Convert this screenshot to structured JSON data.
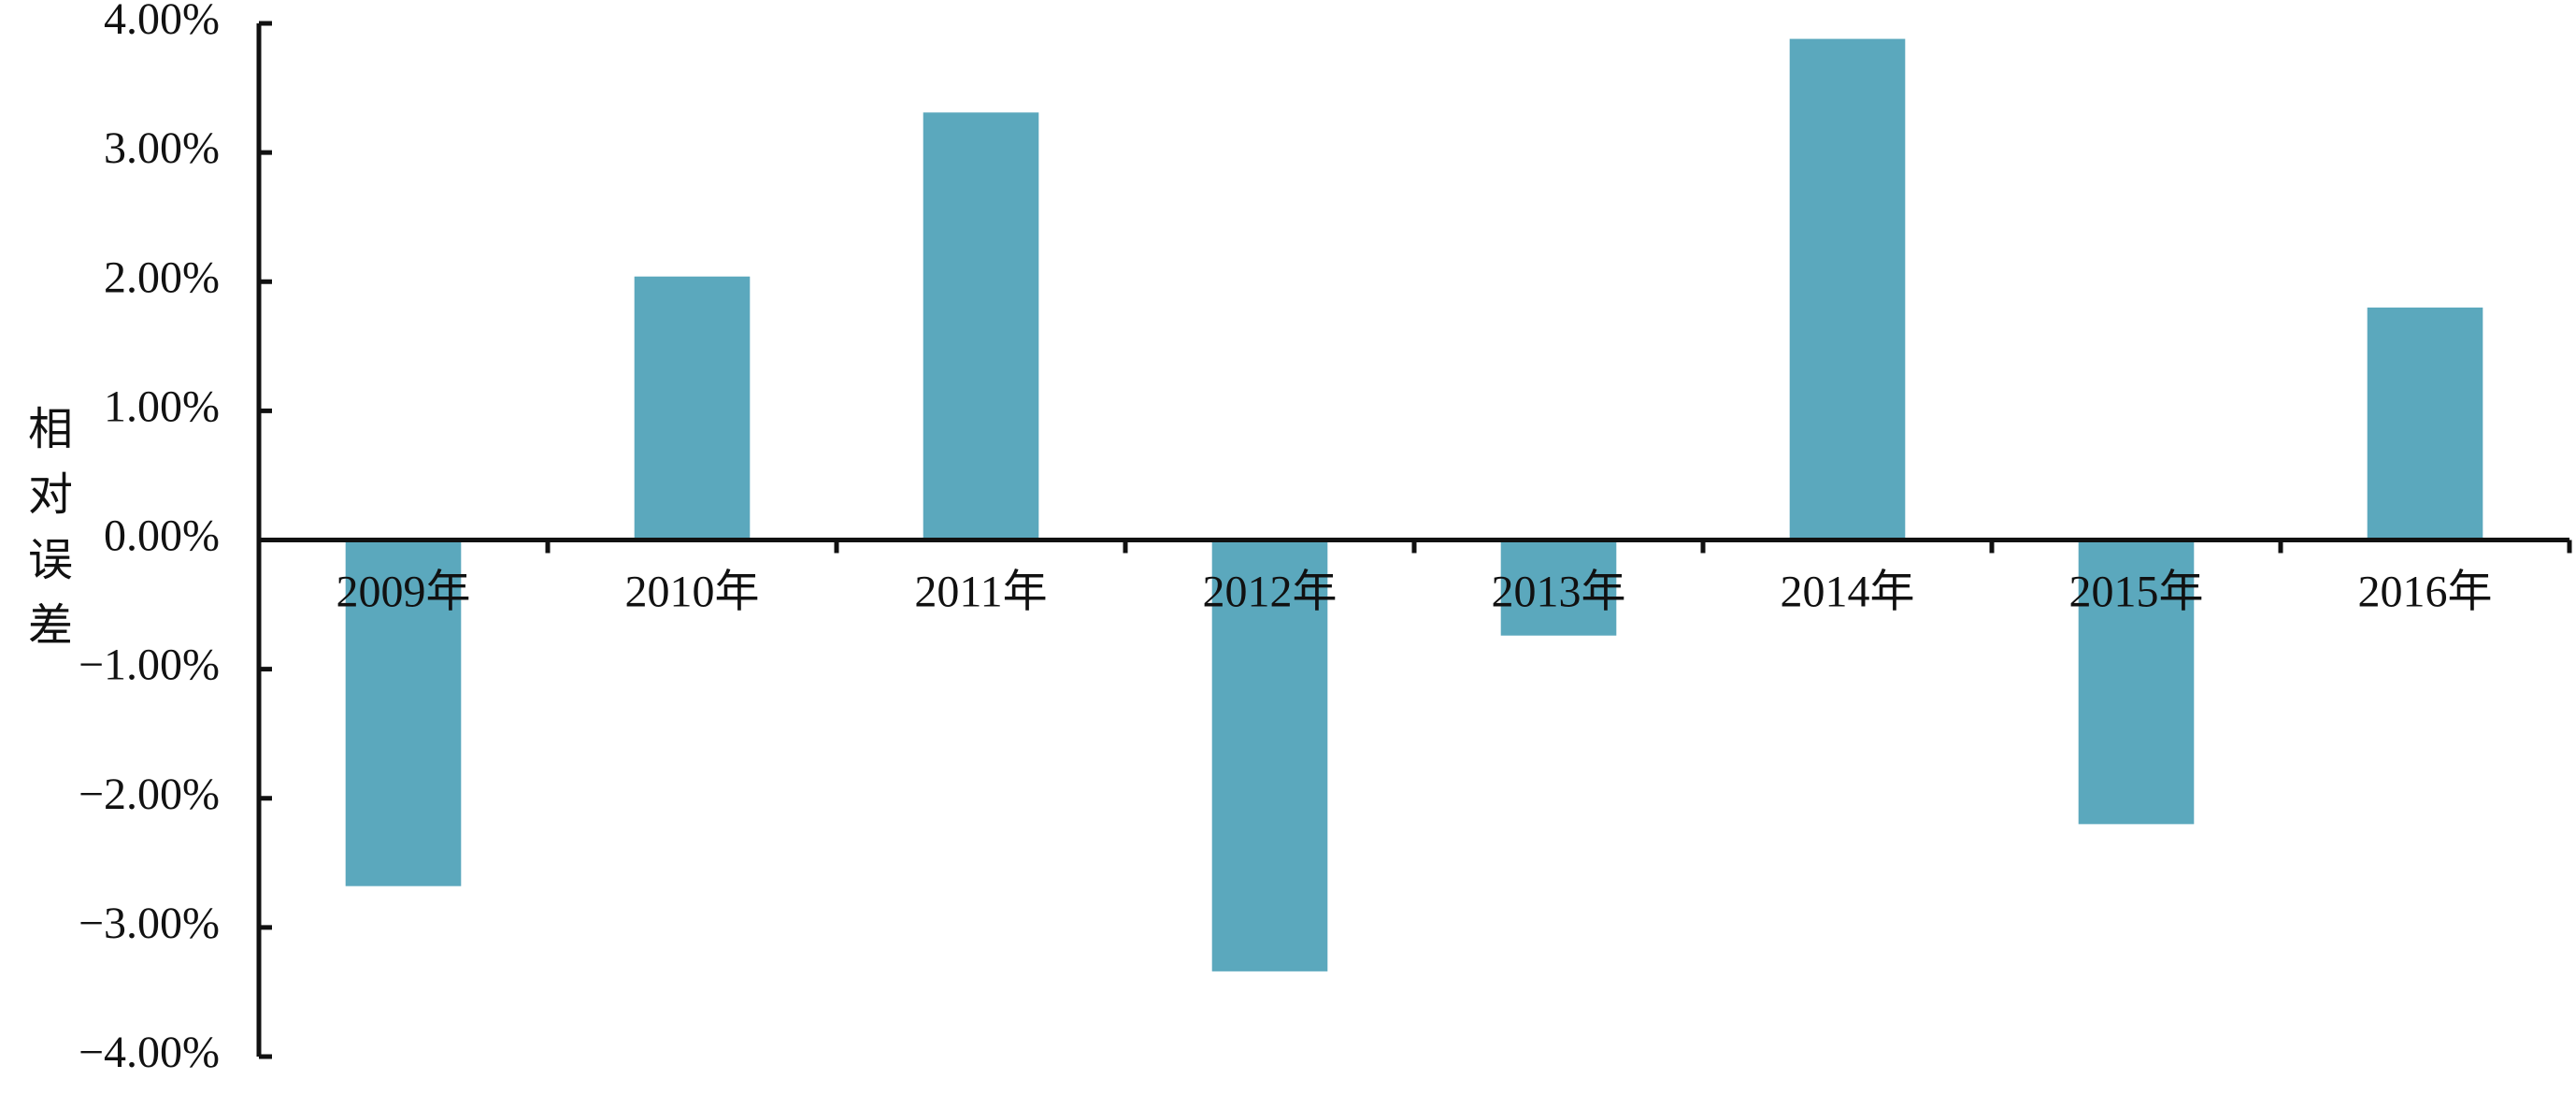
{
  "chart_data": {
    "type": "bar",
    "y_label": "相对误差",
    "categories": [
      "2009年",
      "2010年",
      "2011年",
      "2012年",
      "2013年",
      "2014年",
      "2015年",
      "2016年"
    ],
    "values": [
      -2.68,
      2.04,
      3.31,
      -3.34,
      -0.74,
      3.88,
      -2.2,
      1.8
    ],
    "color": "#5ba8bd",
    "ylim": [
      -4,
      4
    ],
    "yticks": [
      {
        "value": -4,
        "label": "−4.00%"
      },
      {
        "value": -3,
        "label": "−3.00%"
      },
      {
        "value": -2,
        "label": "−2.00%"
      },
      {
        "value": -1,
        "label": "−1.00%"
      },
      {
        "value": 0,
        "label": "0.00%"
      },
      {
        "value": 1,
        "label": "1.00%"
      },
      {
        "value": 2,
        "label": "2.00%"
      },
      {
        "value": 3,
        "label": "3.00%"
      },
      {
        "value": 4,
        "label": "4.00%"
      }
    ],
    "grid": false
  }
}
